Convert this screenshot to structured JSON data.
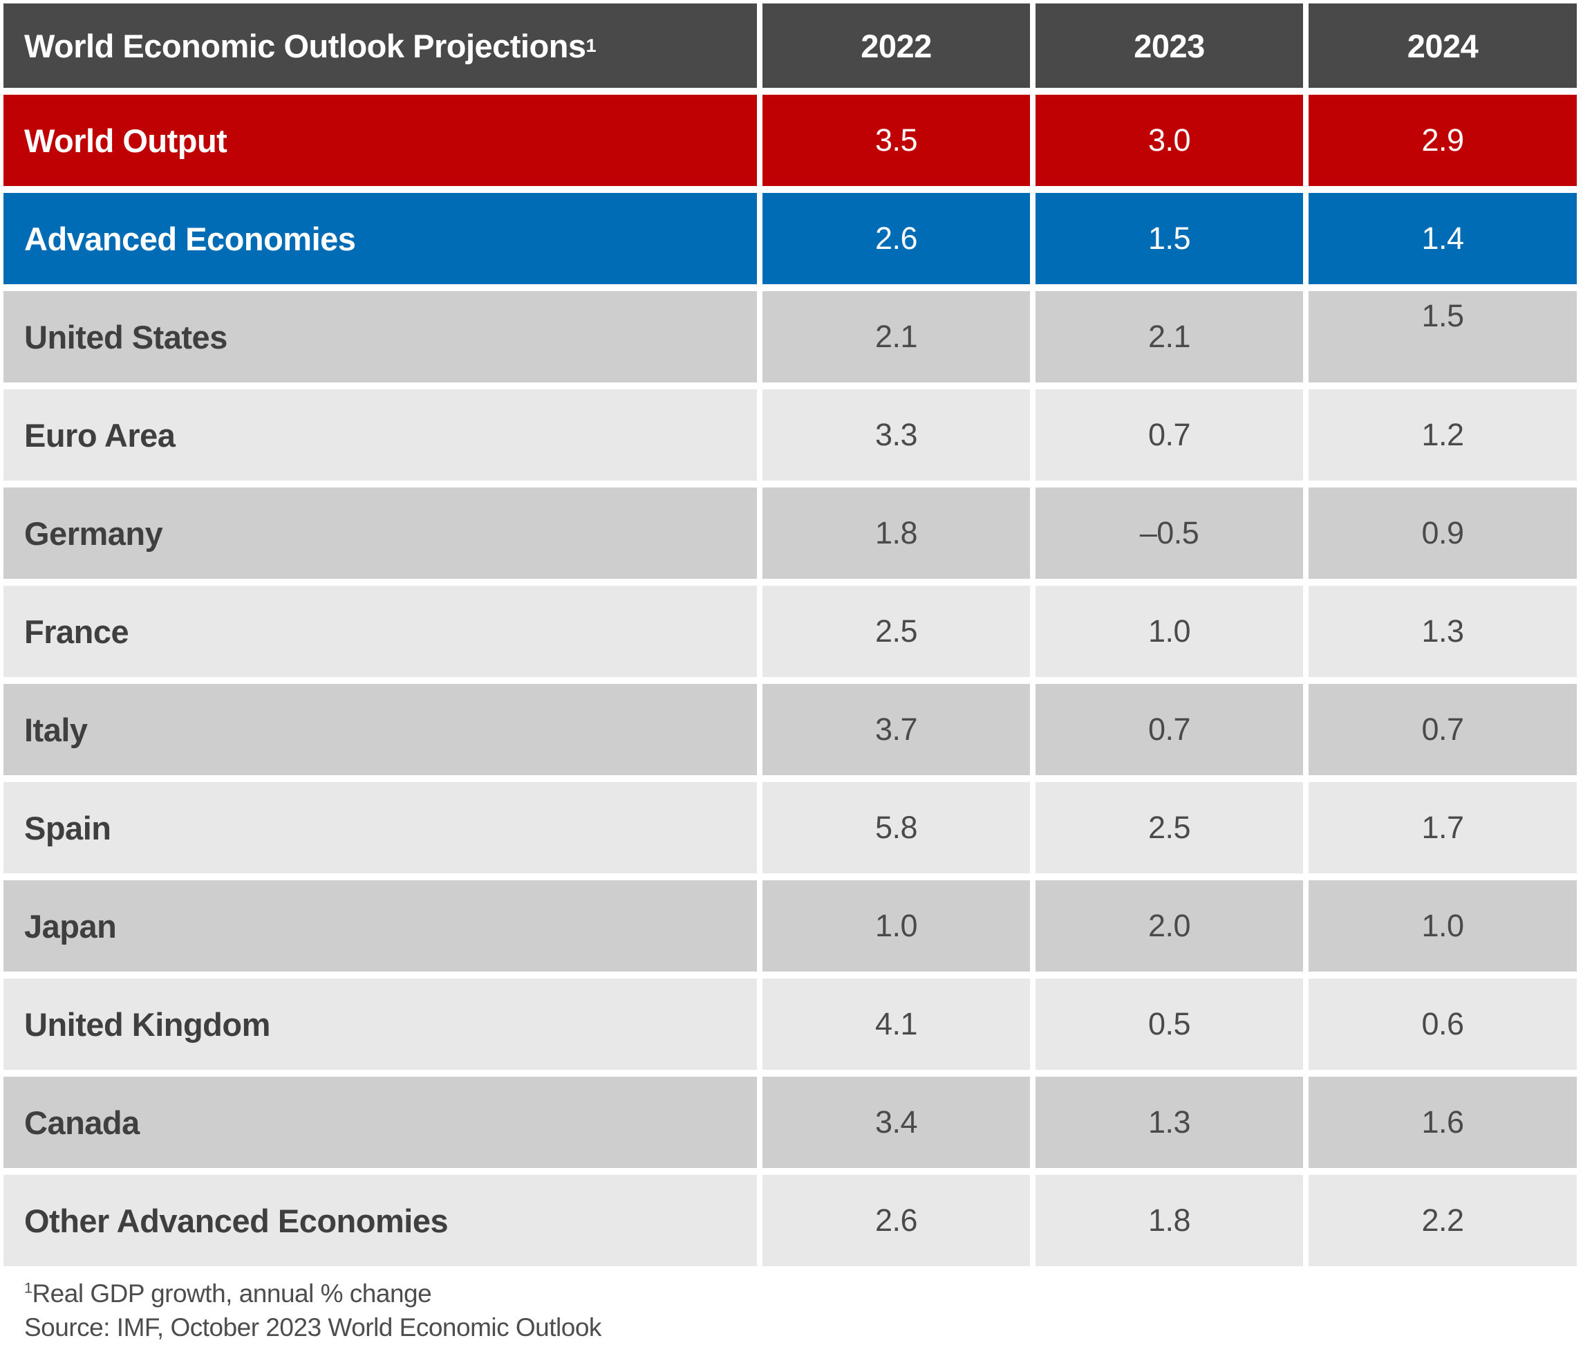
{
  "colors": {
    "header_bg": "#494949",
    "red": "#c00104",
    "blue": "#016cb6",
    "gray_dark": "#cecece",
    "gray_light": "#e8e8e8",
    "footnote": "#4d4d4d"
  },
  "table": {
    "title": "World Economic Outlook Projections",
    "title_superscript": "1",
    "years": [
      "2022",
      "2023",
      "2024"
    ],
    "rows": [
      {
        "label": "World Output",
        "values": [
          "3.5",
          "3.0",
          "2.9"
        ],
        "style": "red"
      },
      {
        "label": "Advanced Economies",
        "values": [
          "2.6",
          "1.5",
          "1.4"
        ],
        "style": "blue"
      },
      {
        "label": "United States",
        "values": [
          "2.1",
          "2.1",
          "1.5"
        ],
        "style": "gray-dark"
      },
      {
        "label": "Euro Area",
        "values": [
          "3.3",
          "0.7",
          "1.2"
        ],
        "style": "gray-light"
      },
      {
        "label": "Germany",
        "values": [
          "1.8",
          "–0.5",
          "0.9"
        ],
        "style": "gray-dark"
      },
      {
        "label": "France",
        "values": [
          "2.5",
          "1.0",
          "1.3"
        ],
        "style": "gray-light"
      },
      {
        "label": "Italy",
        "values": [
          "3.7",
          "0.7",
          "0.7"
        ],
        "style": "gray-dark"
      },
      {
        "label": "Spain",
        "values": [
          "5.8",
          "2.5",
          "1.7"
        ],
        "style": "gray-light"
      },
      {
        "label": "Japan",
        "values": [
          "1.0",
          "2.0",
          "1.0"
        ],
        "style": "gray-dark"
      },
      {
        "label": "United Kingdom",
        "values": [
          "4.1",
          "0.5",
          "0.6"
        ],
        "style": "gray-light"
      },
      {
        "label": "Canada",
        "values": [
          "3.4",
          "1.3",
          "1.6"
        ],
        "style": "gray-dark"
      },
      {
        "label": "Other Advanced Economies",
        "values": [
          "2.6",
          "1.8",
          "2.2"
        ],
        "style": "gray-light"
      }
    ],
    "footnotes": [
      {
        "superscript": "1",
        "text": "Real GDP growth, annual % change"
      },
      {
        "superscript": "",
        "text": "Source: IMF, October 2023 World Economic Outlook"
      }
    ]
  },
  "chart_data": {
    "type": "table",
    "title": "World Economic Outlook Projections",
    "columns": [
      "2022",
      "2023",
      "2024"
    ],
    "row_labels": [
      "World Output",
      "Advanced Economies",
      "United States",
      "Euro Area",
      "Germany",
      "France",
      "Italy",
      "Spain",
      "Japan",
      "United Kingdom",
      "Canada",
      "Other Advanced Economies"
    ],
    "values": [
      [
        3.5,
        3.0,
        2.9
      ],
      [
        2.6,
        1.5,
        1.4
      ],
      [
        2.1,
        2.1,
        1.5
      ],
      [
        3.3,
        0.7,
        1.2
      ],
      [
        1.8,
        -0.5,
        0.9
      ],
      [
        2.5,
        1.0,
        1.3
      ],
      [
        3.7,
        0.7,
        0.7
      ],
      [
        5.8,
        2.5,
        1.7
      ],
      [
        1.0,
        2.0,
        1.0
      ],
      [
        4.1,
        0.5,
        0.6
      ],
      [
        3.4,
        1.3,
        1.6
      ],
      [
        2.6,
        1.8,
        2.2
      ]
    ],
    "footnote": "Real GDP growth, annual % change",
    "source": "IMF, October 2023 World Economic Outlook"
  }
}
